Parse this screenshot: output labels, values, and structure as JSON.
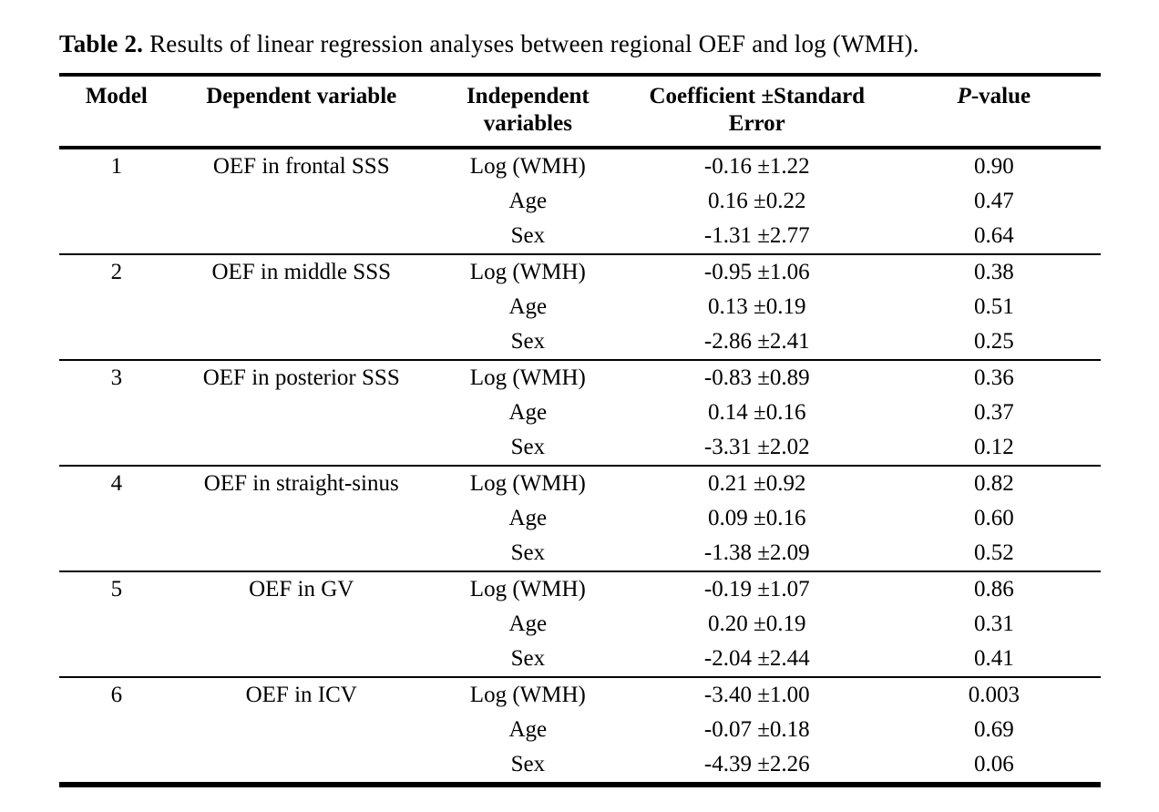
{
  "title": {
    "bold": "Table 2.",
    "rest": " Results of linear regression analyses between regional OEF and log (WMH)."
  },
  "table": {
    "header": {
      "model": "Model",
      "dependent": "Dependent variable",
      "independent": "Independent variables",
      "coefficient": "Coefficient ±Standard Error",
      "p_italic": "P",
      "p_rest": "-value"
    },
    "models": [
      {
        "model": "1",
        "dependent": "OEF in frontal SSS",
        "rows": [
          {
            "independent": "Log (WMH)",
            "coefficient": "-0.16 ±1.22",
            "p": "0.90"
          },
          {
            "independent": "Age",
            "coefficient": "0.16 ±0.22",
            "p": "0.47"
          },
          {
            "independent": "Sex",
            "coefficient": "-1.31 ±2.77",
            "p": "0.64"
          }
        ]
      },
      {
        "model": "2",
        "dependent": "OEF in middle SSS",
        "rows": [
          {
            "independent": "Log (WMH)",
            "coefficient": "-0.95 ±1.06",
            "p": "0.38"
          },
          {
            "independent": "Age",
            "coefficient": "0.13 ±0.19",
            "p": "0.51"
          },
          {
            "independent": "Sex",
            "coefficient": "-2.86 ±2.41",
            "p": "0.25"
          }
        ]
      },
      {
        "model": "3",
        "dependent": "OEF in posterior SSS",
        "rows": [
          {
            "independent": "Log (WMH)",
            "coefficient": "-0.83 ±0.89",
            "p": "0.36"
          },
          {
            "independent": "Age",
            "coefficient": "0.14 ±0.16",
            "p": "0.37"
          },
          {
            "independent": "Sex",
            "coefficient": "-3.31 ±2.02",
            "p": "0.12"
          }
        ]
      },
      {
        "model": "4",
        "dependent": "OEF in straight-sinus",
        "rows": [
          {
            "independent": "Log (WMH)",
            "coefficient": "0.21 ±0.92",
            "p": "0.82"
          },
          {
            "independent": "Age",
            "coefficient": "0.09 ±0.16",
            "p": "0.60"
          },
          {
            "independent": "Sex",
            "coefficient": "-1.38 ±2.09",
            "p": "0.52"
          }
        ]
      },
      {
        "model": "5",
        "dependent": "OEF in GV",
        "rows": [
          {
            "independent": "Log (WMH)",
            "coefficient": "-0.19 ±1.07",
            "p": "0.86"
          },
          {
            "independent": "Age",
            "coefficient": "0.20 ±0.19",
            "p": "0.31"
          },
          {
            "independent": "Sex",
            "coefficient": "-2.04 ±2.44",
            "p": "0.41"
          }
        ]
      },
      {
        "model": "6",
        "dependent": "OEF in ICV",
        "rows": [
          {
            "independent": "Log (WMH)",
            "coefficient": "-3.40 ±1.00",
            "p": "0.003"
          },
          {
            "independent": "Age",
            "coefficient": "-0.07 ±0.18",
            "p": "0.69"
          },
          {
            "independent": "Sex",
            "coefficient": "-4.39 ±2.26",
            "p": "0.06"
          }
        ]
      }
    ]
  }
}
